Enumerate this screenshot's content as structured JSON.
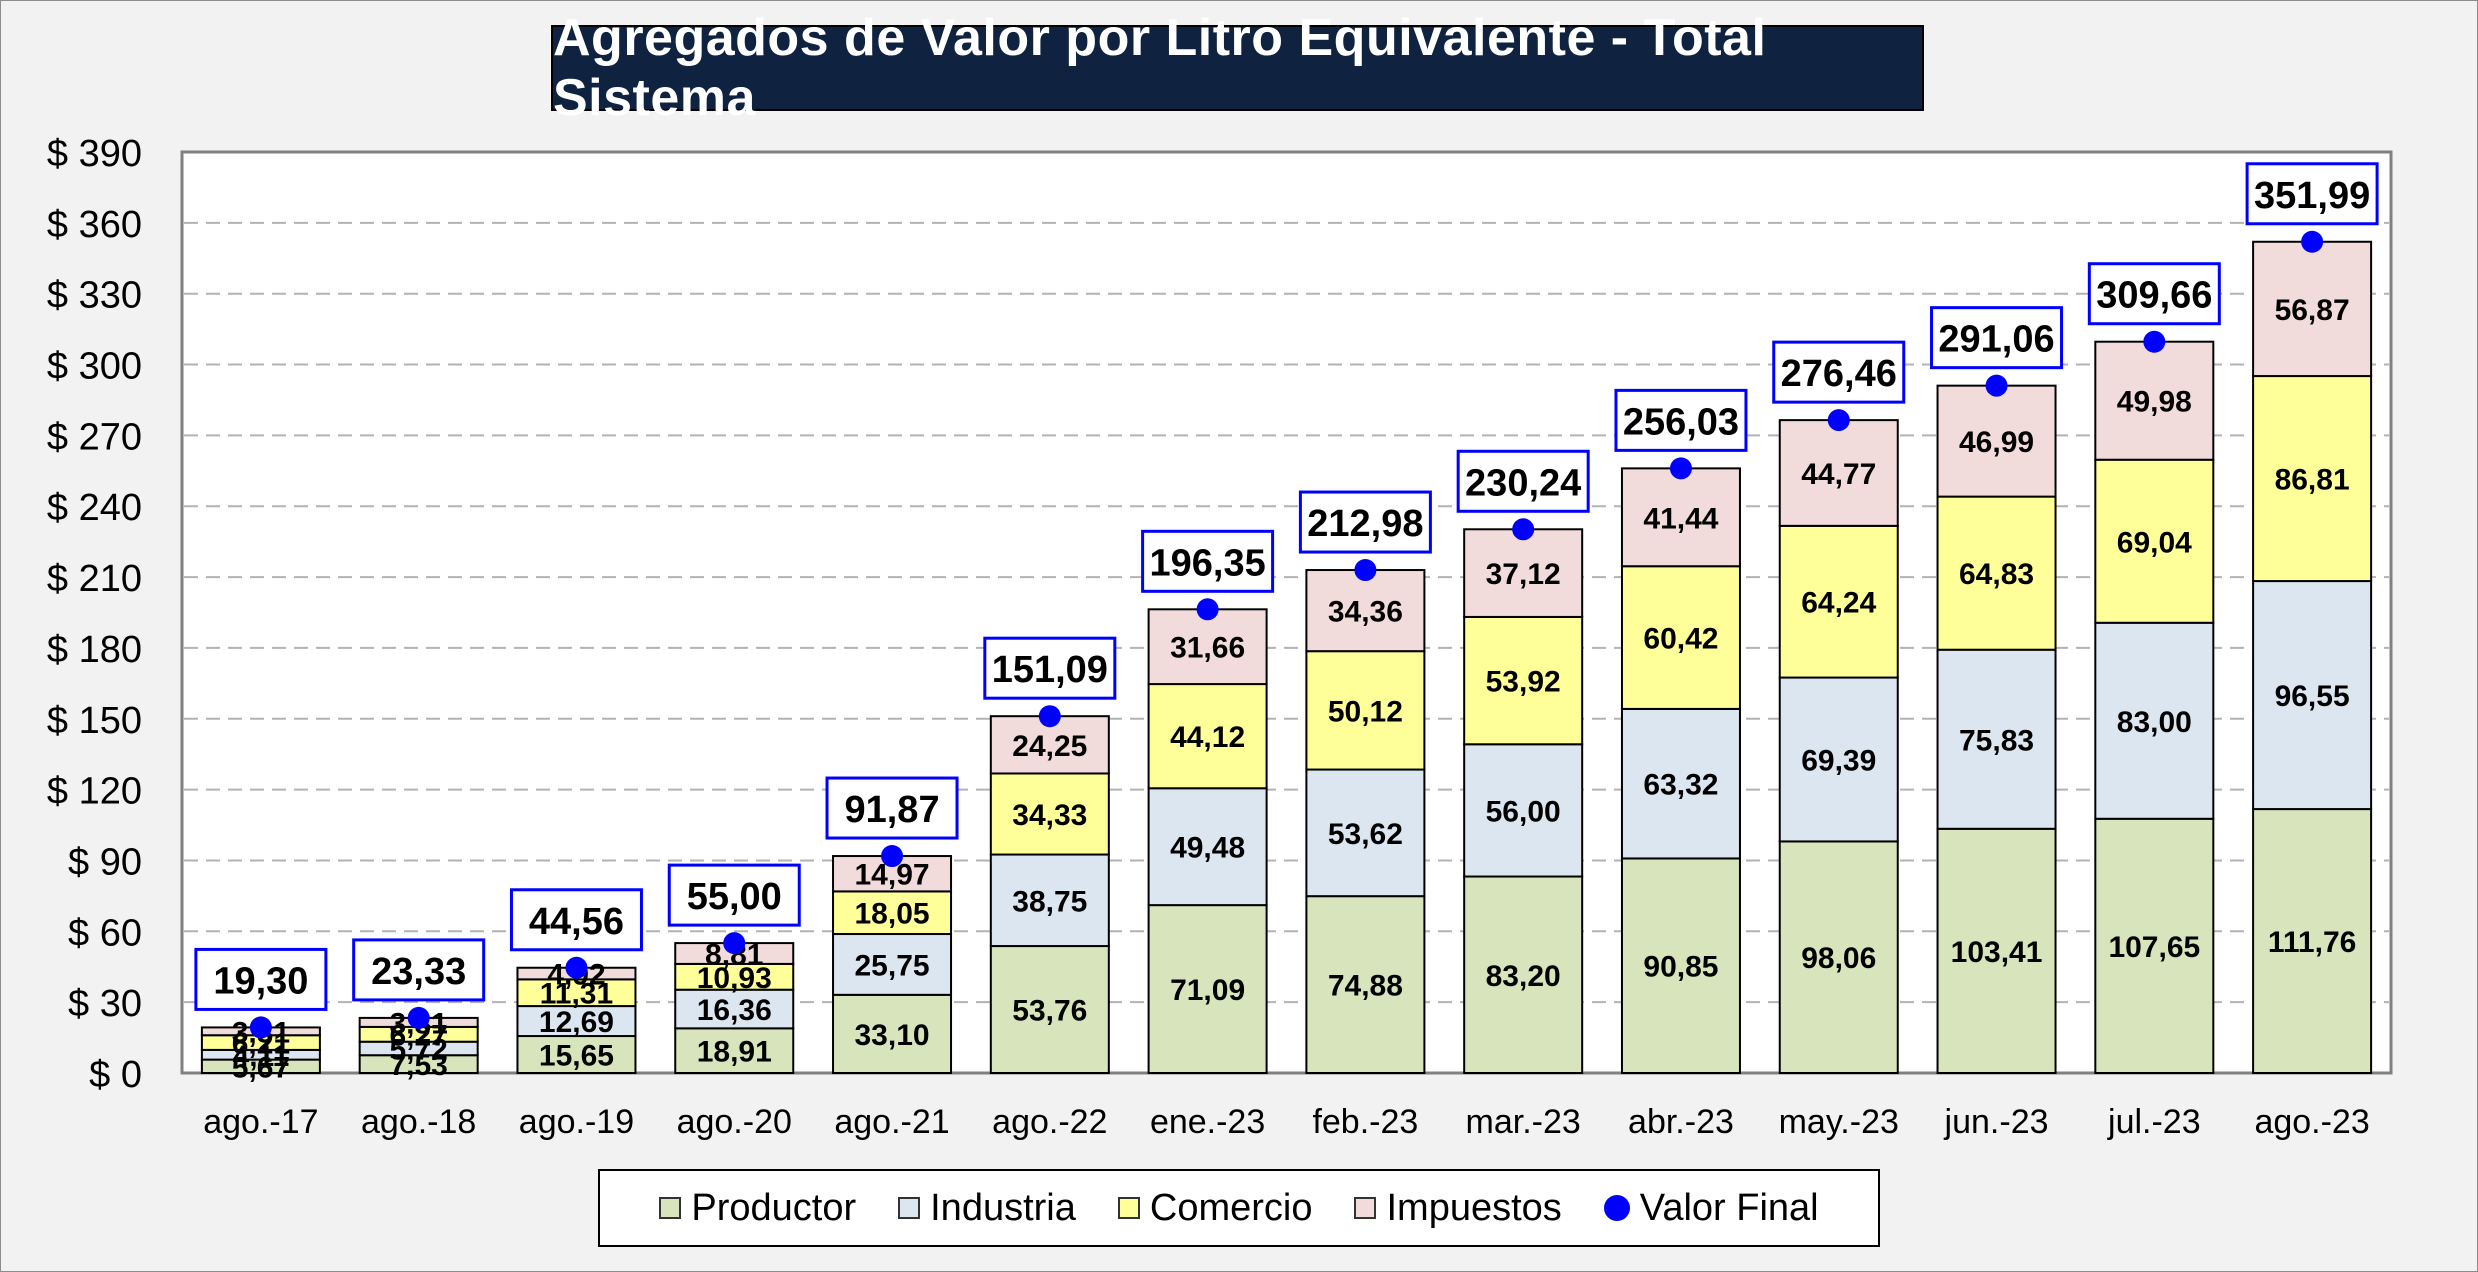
{
  "colors": {
    "productor": "#d8e4bc",
    "industria": "#dce6f1",
    "comercio": "#ffff99",
    "impuestos": "#f2dcdb",
    "valor_final": "#0000ff",
    "title_bg": "#0f2341",
    "label_border": "#0000ff"
  },
  "chart_data": {
    "type": "bar",
    "stacked": true,
    "title": "Agregados de Valor por Litro Equivalente - Total Sistema",
    "ylim": [
      0,
      390
    ],
    "ytick_step": 30,
    "yticks": [
      "$ 0",
      "$ 30",
      "$ 60",
      "$ 90",
      "$ 120",
      "$ 150",
      "$ 180",
      "$ 210",
      "$ 240",
      "$ 270",
      "$ 300",
      "$ 330",
      "$ 360",
      "$ 390"
    ],
    "grid": true,
    "legend_position": "bottom",
    "categories": [
      "ago.-17",
      "ago.-18",
      "ago.-19",
      "ago.-20",
      "ago.-21",
      "ago.-22",
      "ene.-23",
      "feb.-23",
      "mar.-23",
      "abr.-23",
      "may.-23",
      "jun.-23",
      "jul.-23",
      "ago.-23"
    ],
    "series": [
      {
        "name": "Productor",
        "color_key": "productor",
        "values": [
          5.67,
          7.53,
          15.65,
          18.91,
          33.1,
          53.76,
          71.09,
          74.88,
          83.2,
          90.85,
          98.06,
          103.41,
          107.65,
          111.76
        ],
        "labels": [
          "5,67",
          "7,53",
          "15,65",
          "18,91",
          "33,10",
          "53,76",
          "71,09",
          "74,88",
          "83,20",
          "90,85",
          "98,06",
          "103,41",
          "107,65",
          "111,76"
        ]
      },
      {
        "name": "Industria",
        "color_key": "industria",
        "values": [
          4.11,
          5.72,
          12.69,
          16.36,
          25.75,
          38.75,
          49.48,
          53.62,
          56.0,
          63.32,
          69.39,
          75.83,
          83.0,
          96.55
        ],
        "labels": [
          "4,11",
          "5,72",
          "12,69",
          "16,36",
          "25,75",
          "38,75",
          "49,48",
          "53,62",
          "56,00",
          "63,32",
          "69,39",
          "75,83",
          "83,00",
          "96,55"
        ]
      },
      {
        "name": "Comercio",
        "color_key": "comercio",
        "values": [
          6.21,
          6.27,
          11.31,
          10.93,
          18.05,
          34.33,
          44.12,
          50.12,
          53.92,
          60.42,
          64.24,
          64.83,
          69.04,
          86.81
        ],
        "labels": [
          "6,21",
          "6,27",
          "11,31",
          "10,93",
          "18,05",
          "34,33",
          "44,12",
          "50,12",
          "53,92",
          "60,42",
          "64,24",
          "64,83",
          "69,04",
          "86,81"
        ]
      },
      {
        "name": "Impuestos",
        "color_key": "impuestos",
        "values": [
          3.31,
          3.81,
          4.92,
          8.81,
          14.97,
          24.25,
          31.66,
          34.36,
          37.12,
          41.44,
          44.77,
          46.99,
          49.98,
          56.87
        ],
        "labels": [
          "3,31",
          "3,81",
          "4,92",
          "8,81",
          "14,97",
          "24,25",
          "31,66",
          "34,36",
          "37,12",
          "41,44",
          "44,77",
          "46,99",
          "49,98",
          "56,87"
        ]
      }
    ],
    "valor_final": {
      "name": "Valor Final",
      "values": [
        19.3,
        23.33,
        44.56,
        55.0,
        91.87,
        151.09,
        196.35,
        212.98,
        230.24,
        256.03,
        276.46,
        291.06,
        309.66,
        351.99
      ],
      "labels": [
        "19,30",
        "23,33",
        "44,56",
        "55,00",
        "91,87",
        "151,09",
        "196,35",
        "212,98",
        "230,24",
        "256,03",
        "276,46",
        "291,06",
        "309,66",
        "351,99"
      ]
    }
  },
  "legend": {
    "items": [
      "Productor",
      "Industria",
      "Comercio",
      "Impuestos",
      "Valor Final"
    ]
  }
}
